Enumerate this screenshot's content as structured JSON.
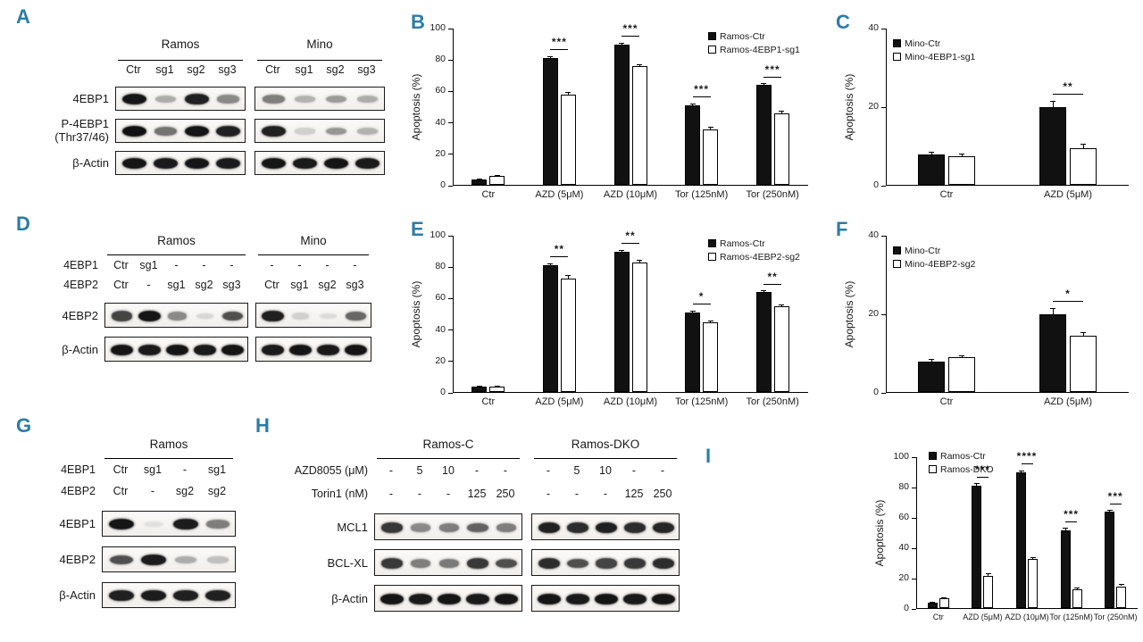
{
  "figure": {
    "panel_letter_color": "#2b7da6",
    "letters": {
      "A": "A",
      "B": "B",
      "C": "C",
      "D": "D",
      "E": "E",
      "F": "F",
      "G": "G",
      "H": "H",
      "I": "I"
    }
  },
  "blots": {
    "A": {
      "group_names": [
        "Ramos",
        "Mino"
      ],
      "lane_counts": [
        4,
        4
      ],
      "lane_label_rows": [
        {
          "label": "",
          "values": [
            [
              "Ctr",
              "sg1",
              "sg2",
              "sg3"
            ],
            [
              "Ctr",
              "sg1",
              "sg2",
              "sg3"
            ]
          ]
        }
      ],
      "blot_rows": [
        {
          "label": [
            "4EBP1"
          ],
          "bands": [
            [
              0.95,
              0.3,
              0.9,
              0.45
            ],
            [
              0.5,
              0.28,
              0.38,
              0.3
            ]
          ]
        },
        {
          "label": [
            "P-4EBP1",
            "(Thr37/46)"
          ],
          "bands": [
            [
              0.97,
              0.55,
              0.95,
              0.9
            ],
            [
              0.9,
              0.15,
              0.4,
              0.28
            ]
          ]
        },
        {
          "label": [
            "β-Actin"
          ],
          "bands": [
            [
              0.95,
              0.93,
              0.95,
              0.93
            ],
            [
              0.95,
              0.93,
              0.95,
              0.93
            ]
          ]
        }
      ]
    },
    "D": {
      "group_names": [
        "Ramos",
        "Mino"
      ],
      "lane_counts": [
        5,
        4
      ],
      "lane_label_rows": [
        {
          "label": "4EBP1",
          "values": [
            [
              "Ctr",
              "sg1",
              "-",
              "-",
              "-"
            ],
            [
              "-",
              "-",
              "-",
              "-"
            ]
          ]
        },
        {
          "label": "4EBP2",
          "values": [
            [
              "Ctr",
              "-",
              "sg1",
              "sg2",
              "sg3"
            ],
            [
              "Ctr",
              "sg1",
              "sg2",
              "sg3"
            ]
          ]
        }
      ],
      "blot_rows": [
        {
          "label": [
            "4EBP2"
          ],
          "bands": [
            [
              0.75,
              0.95,
              0.45,
              0.12,
              0.7
            ],
            [
              0.9,
              0.15,
              0.1,
              0.6
            ]
          ]
        },
        {
          "label": [
            "β-Actin"
          ],
          "bands": [
            [
              0.95,
              0.93,
              0.95,
              0.93,
              0.95
            ],
            [
              0.93,
              0.95,
              0.93,
              0.95
            ]
          ]
        }
      ]
    },
    "G": {
      "group_names": [
        "Ramos"
      ],
      "lane_counts": [
        4
      ],
      "lane_label_rows": [
        {
          "label": "4EBP1",
          "values": [
            [
              "Ctr",
              "sg1",
              "-",
              "sg1"
            ]
          ]
        },
        {
          "label": "4EBP2",
          "values": [
            [
              "Ctr",
              "-",
              "sg2",
              "sg2"
            ]
          ]
        }
      ],
      "blot_rows": [
        {
          "label": [
            "4EBP1"
          ],
          "bands": [
            [
              0.95,
              0.08,
              0.92,
              0.5
            ]
          ]
        },
        {
          "label": [
            "4EBP2"
          ],
          "bands": [
            [
              0.7,
              0.92,
              0.3,
              0.22
            ]
          ]
        },
        {
          "label": [
            "β-Actin"
          ],
          "bands": [
            [
              0.9,
              0.92,
              0.9,
              0.9
            ]
          ]
        }
      ]
    },
    "H": {
      "group_names": [
        "Ramos-C",
        "Ramos-DKO"
      ],
      "lane_counts": [
        5,
        5
      ],
      "lane_label_rows": [
        {
          "label": "AZD8055 (μM)",
          "values": [
            [
              "-",
              "5",
              "10",
              "-",
              "-"
            ],
            [
              "-",
              "5",
              "10",
              "-",
              "-"
            ]
          ]
        },
        {
          "label": "Torin1 (nM)",
          "values": [
            [
              "-",
              "-",
              "-",
              "125",
              "250"
            ],
            [
              "-",
              "-",
              "-",
              "125",
              "250"
            ]
          ]
        }
      ],
      "blot_rows": [
        {
          "label": [
            "MCL1"
          ],
          "bands": [
            [
              0.8,
              0.45,
              0.5,
              0.62,
              0.5
            ],
            [
              0.9,
              0.85,
              0.9,
              0.85,
              0.88
            ]
          ]
        },
        {
          "label": [
            "BCL-XL"
          ],
          "bands": [
            [
              0.8,
              0.5,
              0.52,
              0.8,
              0.7
            ],
            [
              0.85,
              0.7,
              0.75,
              0.8,
              0.85
            ]
          ]
        },
        {
          "label": [
            "β-Actin"
          ],
          "bands": [
            [
              0.95,
              0.93,
              0.95,
              0.93,
              0.95
            ],
            [
              0.95,
              0.93,
              0.95,
              0.93,
              0.95
            ]
          ]
        }
      ]
    }
  },
  "chart_data": [
    {
      "panel": "B",
      "type": "bar",
      "title": "",
      "ylabel": "Apoptosis (%)",
      "ylim": [
        0,
        100
      ],
      "yticks": [
        0,
        20,
        40,
        60,
        80,
        100
      ],
      "grid": false,
      "legend_position": "top-right",
      "categories": [
        "Ctr",
        "AZD (5μM)",
        "AZD (10μM)",
        "Tor (125nM)",
        "Tor (250nM)"
      ],
      "series": [
        {
          "name": "Ramos-Ctr",
          "fill": "black",
          "values": [
            4,
            81,
            90,
            51,
            64
          ],
          "errors": [
            0.5,
            1.2,
            0.8,
            1.2,
            1.0
          ]
        },
        {
          "name": "Ramos-4EBP1-sg1",
          "fill": "white",
          "values": [
            6,
            58,
            76,
            36,
            46
          ],
          "errors": [
            0.5,
            1.2,
            1.0,
            1.0,
            1.2
          ]
        }
      ],
      "significance": [
        "",
        "***",
        "***",
        "***",
        "***"
      ]
    },
    {
      "panel": "C",
      "type": "bar",
      "title": "",
      "ylabel": "Apoptosis (%)",
      "ylim": [
        0,
        40
      ],
      "yticks": [
        0,
        20,
        40
      ],
      "grid": false,
      "legend_position": "top-left",
      "categories": [
        "Ctr",
        "AZD (5μM)"
      ],
      "series": [
        {
          "name": "Mino-Ctr",
          "fill": "black",
          "values": [
            8,
            20
          ],
          "errors": [
            0.6,
            1.5
          ]
        },
        {
          "name": "Mino-4EBP1-sg1",
          "fill": "white",
          "values": [
            7.5,
            9.5
          ],
          "errors": [
            0.6,
            1.0
          ]
        }
      ],
      "significance": [
        "",
        "**"
      ]
    },
    {
      "panel": "E",
      "type": "bar",
      "title": "",
      "ylabel": "Apoptosis (%)",
      "ylim": [
        0,
        100
      ],
      "yticks": [
        0,
        20,
        40,
        60,
        80,
        100
      ],
      "grid": false,
      "legend_position": "top-right",
      "categories": [
        "Ctr",
        "AZD (5μM)",
        "AZD (10μM)",
        "Tor (125nM)",
        "Tor (250nM)"
      ],
      "series": [
        {
          "name": "Ramos-Ctr",
          "fill": "black",
          "values": [
            4,
            81,
            90,
            51,
            64
          ],
          "errors": [
            0.5,
            1.2,
            0.8,
            1.2,
            1.0
          ]
        },
        {
          "name": "Ramos-4EBP2-sg2",
          "fill": "white",
          "values": [
            4,
            73,
            83,
            45,
            55
          ],
          "errors": [
            0.5,
            1.5,
            1.2,
            1.0,
            1.2
          ]
        }
      ],
      "significance": [
        "",
        "**",
        "**",
        "*",
        "**"
      ]
    },
    {
      "panel": "F",
      "type": "bar",
      "title": "",
      "ylabel": "Apoptosis (%)",
      "ylim": [
        0,
        40
      ],
      "yticks": [
        0,
        20,
        40
      ],
      "grid": false,
      "legend_position": "top-left",
      "categories": [
        "Ctr",
        "AZD (5μM)"
      ],
      "series": [
        {
          "name": "Mino-Ctr",
          "fill": "black",
          "values": [
            8,
            20
          ],
          "errors": [
            0.5,
            1.5
          ]
        },
        {
          "name": "Mino-4EBP2-sg2",
          "fill": "white",
          "values": [
            9,
            14.5
          ],
          "errors": [
            0.5,
            0.8
          ]
        }
      ],
      "significance": [
        "",
        "*"
      ]
    },
    {
      "panel": "I",
      "type": "bar",
      "title": "",
      "ylabel": "Apoptosis (%)",
      "ylim": [
        0,
        100
      ],
      "yticks": [
        0,
        20,
        40,
        60,
        80,
        100
      ],
      "grid": false,
      "legend_position": "top-left",
      "categories": [
        "Ctr",
        "AZD (5μM)",
        "AZD (10μM)",
        "Tor (125nM)",
        "Tor (250nM)"
      ],
      "series": [
        {
          "name": "Ramos-Ctr",
          "fill": "black",
          "values": [
            4,
            81,
            90,
            52,
            64
          ],
          "errors": [
            0.5,
            1.5,
            1.0,
            1.0,
            1.0
          ]
        },
        {
          "name": "Ramos-DKO",
          "fill": "white",
          "values": [
            7,
            22,
            33,
            13,
            15
          ],
          "errors": [
            0.5,
            1.5,
            1.0,
            1.0,
            1.0
          ]
        }
      ],
      "significance": [
        "",
        "***",
        "****",
        "***",
        "***"
      ]
    }
  ]
}
